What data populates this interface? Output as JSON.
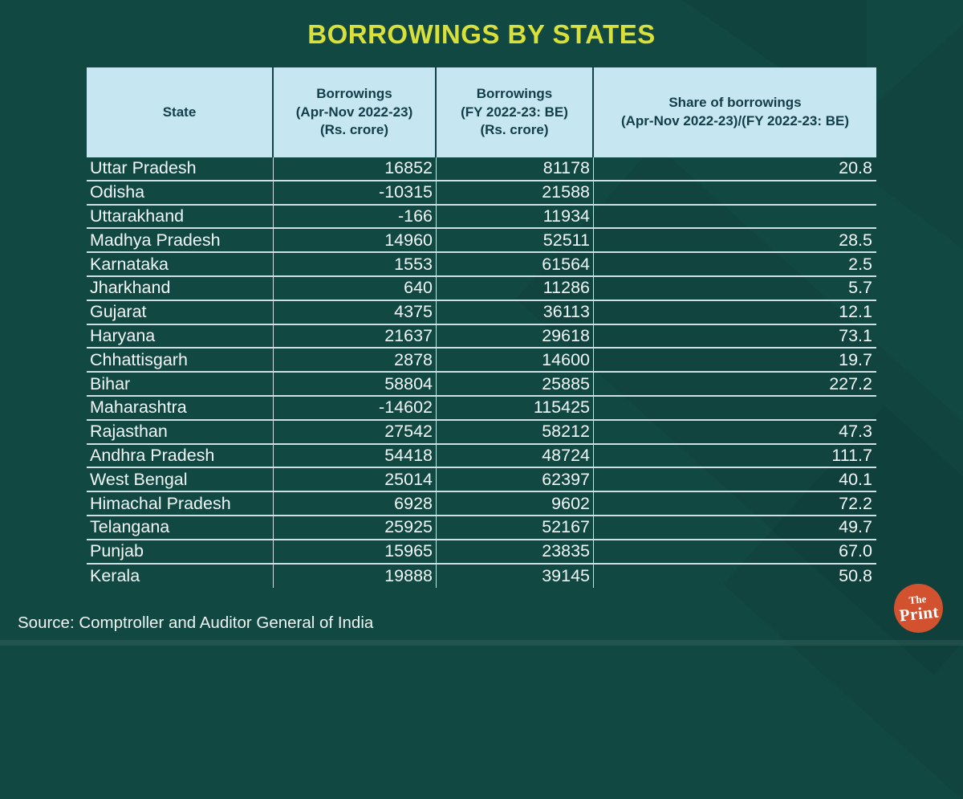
{
  "title": "BORROWINGS BY STATES",
  "source": "Source: Comptroller and Auditor General of India",
  "logo": {
    "line1": "The",
    "line2": "Print"
  },
  "colors": {
    "background": "#124842",
    "title": "#d9e03a",
    "header_background": "#c6e7f2",
    "header_text": "#123d49",
    "row_text": "#f1f7f7",
    "grid_line": "#deeef3",
    "logo_background": "#d2512e"
  },
  "chart_data": {
    "type": "table",
    "title": "BORROWINGS BY STATES",
    "columns": [
      "State",
      "Borrowings\n(Apr-Nov 2022-23)\n(Rs. crore)",
      "Borrowings\n(FY 2022-23: BE)\n(Rs. crore)",
      "Share of borrowings\n(Apr-Nov 2022-23)/(FY 2022-23: BE)"
    ],
    "rows": [
      {
        "state": "Uttar Pradesh",
        "borrowings_apr_nov": "16852",
        "borrowings_fy_be": "81178",
        "share": "20.8"
      },
      {
        "state": "Odisha",
        "borrowings_apr_nov": "-10315",
        "borrowings_fy_be": "21588",
        "share": ""
      },
      {
        "state": "Uttarakhand",
        "borrowings_apr_nov": "-166",
        "borrowings_fy_be": "11934",
        "share": ""
      },
      {
        "state": "Madhya Pradesh",
        "borrowings_apr_nov": "14960",
        "borrowings_fy_be": "52511",
        "share": "28.5"
      },
      {
        "state": "Karnataka",
        "borrowings_apr_nov": "1553",
        "borrowings_fy_be": "61564",
        "share": "2.5"
      },
      {
        "state": "Jharkhand",
        "borrowings_apr_nov": "640",
        "borrowings_fy_be": "11286",
        "share": "5.7"
      },
      {
        "state": "Gujarat",
        "borrowings_apr_nov": "4375",
        "borrowings_fy_be": "36113",
        "share": "12.1"
      },
      {
        "state": "Haryana",
        "borrowings_apr_nov": "21637",
        "borrowings_fy_be": "29618",
        "share": "73.1"
      },
      {
        "state": "Chhattisgarh",
        "borrowings_apr_nov": "2878",
        "borrowings_fy_be": "14600",
        "share": "19.7"
      },
      {
        "state": "Bihar",
        "borrowings_apr_nov": "58804",
        "borrowings_fy_be": "25885",
        "share": "227.2"
      },
      {
        "state": "Maharashtra",
        "borrowings_apr_nov": "-14602",
        "borrowings_fy_be": "115425",
        "share": ""
      },
      {
        "state": "Rajasthan",
        "borrowings_apr_nov": "27542",
        "borrowings_fy_be": "58212",
        "share": "47.3"
      },
      {
        "state": "Andhra Pradesh",
        "borrowings_apr_nov": "54418",
        "borrowings_fy_be": "48724",
        "share": "111.7"
      },
      {
        "state": "West Bengal",
        "borrowings_apr_nov": "25014",
        "borrowings_fy_be": "62397",
        "share": "40.1"
      },
      {
        "state": "Himachal Pradesh",
        "borrowings_apr_nov": "6928",
        "borrowings_fy_be": "9602",
        "share": "72.2"
      },
      {
        "state": "Telangana",
        "borrowings_apr_nov": "25925",
        "borrowings_fy_be": "52167",
        "share": "49.7"
      },
      {
        "state": "Punjab",
        "borrowings_apr_nov": "15965",
        "borrowings_fy_be": "23835",
        "share": "67.0"
      },
      {
        "state": "Kerala",
        "borrowings_apr_nov": "19888",
        "borrowings_fy_be": "39145",
        "share": "50.8"
      }
    ],
    "source": "Comptroller and Auditor General of India",
    "layout": {
      "grid": "horizontal and vertical separators",
      "header_position": "top"
    }
  }
}
